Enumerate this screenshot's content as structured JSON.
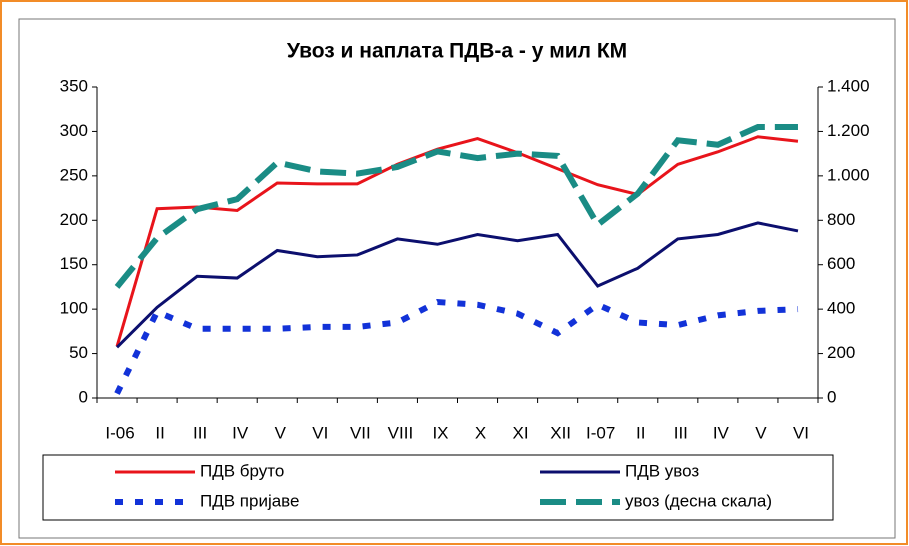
{
  "chart_data": {
    "type": "line",
    "title": "Увоз и наплата ПДВ-а - у мил КМ",
    "categories": [
      "I-06",
      "II",
      "III",
      "IV",
      "V",
      "VI",
      "VII",
      "VIII",
      "IX",
      "X",
      "XI",
      "XII",
      "I-07",
      "II",
      "III",
      "IV",
      "V",
      "VI"
    ],
    "series": [
      {
        "name": "ПДВ бруто",
        "color": "#e8141b",
        "dash": "solid",
        "values": [
          58,
          213,
          215,
          211,
          242,
          241,
          241,
          263,
          280,
          292,
          276,
          258,
          240,
          229,
          263,
          277,
          294,
          289
        ]
      },
      {
        "name": "ПДВ увоз",
        "color": "#0c0f6e",
        "dash": "solid",
        "values": [
          57,
          102,
          137,
          135,
          166,
          159,
          161,
          179,
          173,
          184,
          177,
          184,
          126,
          146,
          179,
          184,
          197,
          188
        ]
      },
      {
        "name": "ПДВ пријаве",
        "color": "#1232d8",
        "dash": "dotted",
        "values": [
          5,
          97,
          78,
          78,
          78,
          80,
          80,
          85,
          108,
          105,
          95,
          73,
          105,
          85,
          82,
          93,
          98,
          100
        ]
      },
      {
        "name": "увоз (десна скала)",
        "color": "#1a8c85",
        "dash": "dashed",
        "axis": "y2",
        "values": [
          500,
          720,
          850,
          895,
          1060,
          1020,
          1010,
          1040,
          1110,
          1080,
          1100,
          1090,
          780,
          920,
          1160,
          1140,
          1220,
          1220
        ]
      }
    ],
    "ylim": [
      0,
      350
    ],
    "yticks": [
      0,
      50,
      100,
      150,
      200,
      250,
      300,
      350
    ],
    "y2lim": [
      0,
      1400
    ],
    "y2ticks": [
      0,
      200,
      400,
      600,
      800,
      {
        "value": 1000,
        "label": "1.000"
      },
      {
        "value": 1200,
        "label": "1.200"
      },
      {
        "value": 1400,
        "label": "1.400"
      }
    ],
    "legend": "bottom"
  }
}
